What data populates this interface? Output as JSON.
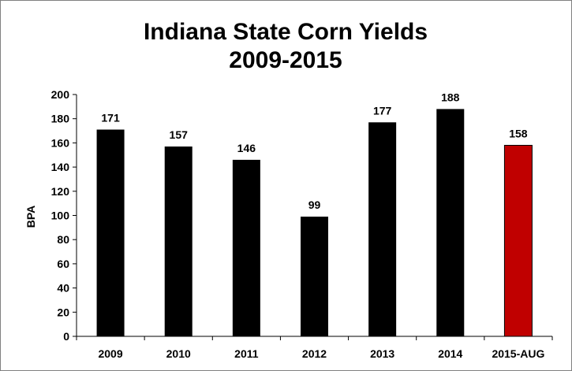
{
  "chart_data": {
    "type": "bar",
    "title_lines": [
      "Indiana State Corn Yields",
      "2009-2015"
    ],
    "xlabel": "",
    "ylabel": "BPA",
    "ylim": [
      0,
      200
    ],
    "yticks": [
      0,
      20,
      40,
      60,
      80,
      100,
      120,
      140,
      160,
      180,
      200
    ],
    "grid": false,
    "legend": "none",
    "categories": [
      "2009",
      "2010",
      "2011",
      "2012",
      "2013",
      "2014",
      "2015-AUG"
    ],
    "values": [
      171,
      157,
      146,
      99,
      177,
      188,
      158
    ],
    "data_labels": [
      "171",
      "157",
      "146",
      "99",
      "177",
      "188",
      "158"
    ],
    "colors": {
      "bar": "#000000",
      "highlight_bar": "#c00000",
      "highlight_border": "#000000"
    },
    "highlight_category": "2015-AUG"
  }
}
